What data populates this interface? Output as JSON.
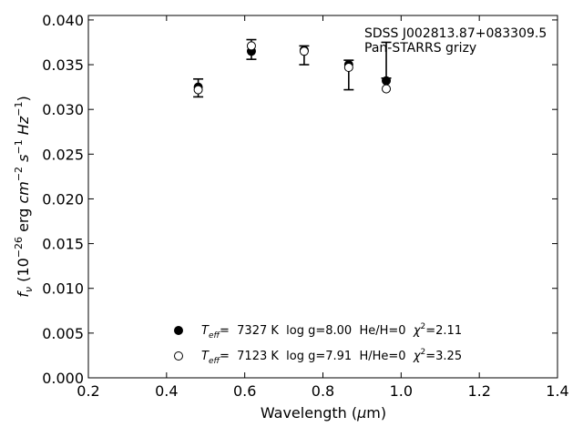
{
  "chart_data": {
    "type": "scatter",
    "title": "",
    "xlabel": "Wavelength (μm)",
    "ylabel": "f_ν (10^-26 erg cm^-2 s^-1 Hz^-1)",
    "xlim": [
      0.2,
      1.4
    ],
    "ylim": [
      0.0,
      0.0405
    ],
    "x_ticks": [
      "0.2",
      "0.4",
      "0.6",
      "0.8",
      "1.0",
      "1.2",
      "1.4"
    ],
    "y_ticks": [
      "0.000",
      "0.005",
      "0.010",
      "0.015",
      "0.020",
      "0.025",
      "0.030",
      "0.035",
      "0.040"
    ],
    "grid": false,
    "legend_position": "bottom-center",
    "annotation": {
      "line1": "SDSS J002813.87+083309.5",
      "line2": "Pan-STARRS grizy"
    },
    "observed": {
      "x": [
        0.481,
        0.617,
        0.752,
        0.866,
        0.962
      ],
      "y": [
        0.0325,
        0.0367,
        0.0361,
        0.0339,
        0.0345
      ],
      "yerr_low": [
        0.0011,
        0.0011,
        0.0011,
        0.0017,
        0.001
      ],
      "yerr_high": [
        0.0009,
        0.0011,
        0.001,
        0.0016,
        0.003
      ]
    },
    "series": [
      {
        "name": "Teff= 7327 K log g=8.00 He/H=0 χ²=2.11",
        "marker": "filled-circle",
        "x": [
          0.481,
          0.617,
          0.752,
          0.866,
          0.962
        ],
        "y": [
          0.0325,
          0.0365,
          0.0366,
          0.035,
          0.0332
        ]
      },
      {
        "name": "Teff= 7123 K log g=7.91 H/He=0 χ²=3.25",
        "marker": "open-circle",
        "x": [
          0.481,
          0.617,
          0.752,
          0.866,
          0.962
        ],
        "y": [
          0.0322,
          0.0371,
          0.0365,
          0.0347,
          0.0323
        ]
      }
    ],
    "legend": [
      {
        "marker": "filled-circle",
        "teff_prefix": "T",
        "teff_sub": "eff",
        "teff_rest": "=  7327 K  log g=8.00  He/H=0  ",
        "chi": "χ",
        "chi_sup": "2",
        "chi_rest": "=2.11"
      },
      {
        "marker": "open-circle",
        "teff_prefix": "T",
        "teff_sub": "eff",
        "teff_rest": "=  7123 K  log g=7.91  H/He=0  ",
        "chi": "χ",
        "chi_sup": "2",
        "chi_rest": "=3.25"
      }
    ]
  }
}
